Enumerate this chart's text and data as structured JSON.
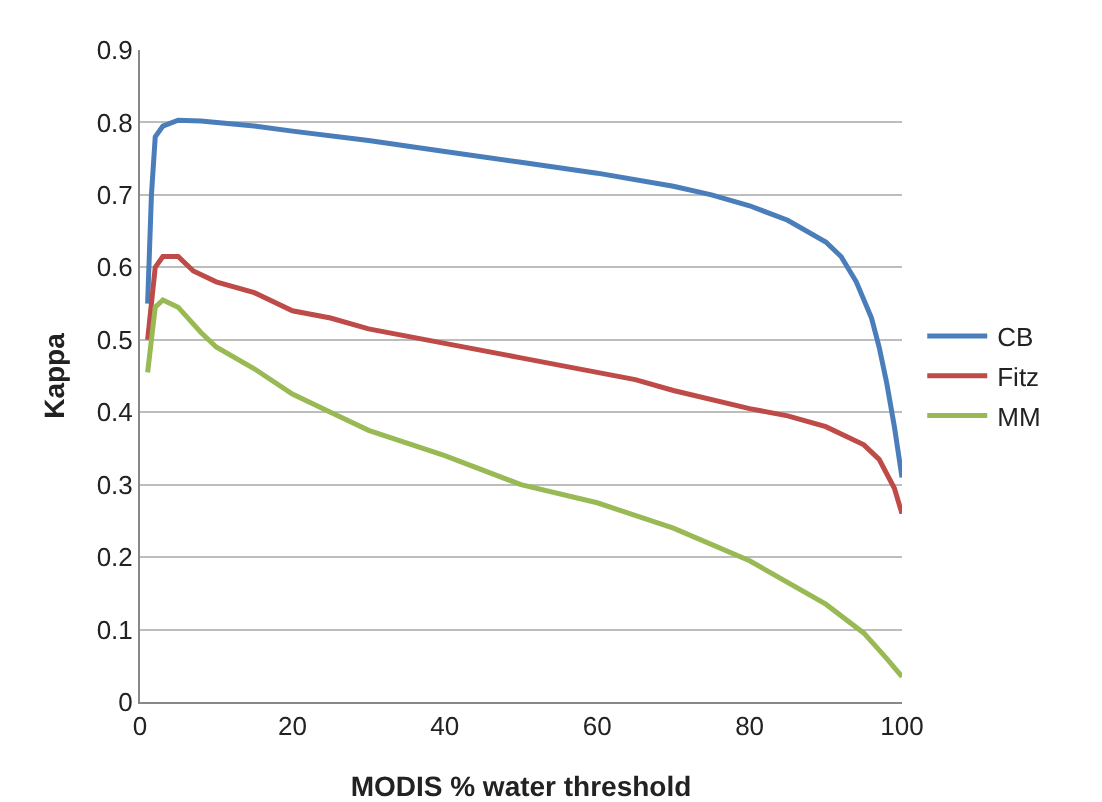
{
  "chart_data": {
    "type": "line",
    "xlabel": "MODIS % water threshold",
    "ylabel": "Kappa",
    "xlim": [
      0,
      100
    ],
    "xticks": [
      0,
      20,
      40,
      60,
      80,
      100
    ],
    "ylim": [
      0,
      0.9
    ],
    "yticks": [
      0,
      0.1,
      0.2,
      0.3,
      0.4,
      0.5,
      0.6,
      0.7,
      0.8,
      0.9
    ],
    "grid": "y",
    "legend": "right",
    "marker": "none",
    "line_style": "solid",
    "series": [
      {
        "name": "CB",
        "color": "#4a7ebb",
        "x": [
          1,
          1.5,
          2,
          3,
          5,
          8,
          15,
          20,
          30,
          40,
          50,
          60,
          70,
          75,
          80,
          85,
          90,
          92,
          94,
          96,
          97,
          98,
          99,
          100
        ],
        "values": [
          0.55,
          0.7,
          0.78,
          0.795,
          0.803,
          0.802,
          0.795,
          0.788,
          0.775,
          0.76,
          0.745,
          0.73,
          0.712,
          0.7,
          0.685,
          0.665,
          0.635,
          0.615,
          0.58,
          0.53,
          0.49,
          0.44,
          0.38,
          0.31
        ]
      },
      {
        "name": "Fitz",
        "color": "#be4b48",
        "x": [
          1,
          2,
          3,
          5,
          7,
          10,
          15,
          20,
          25,
          30,
          40,
          50,
          60,
          65,
          70,
          80,
          85,
          90,
          95,
          97,
          99,
          100
        ],
        "values": [
          0.5,
          0.6,
          0.615,
          0.615,
          0.595,
          0.58,
          0.565,
          0.54,
          0.53,
          0.515,
          0.495,
          0.475,
          0.455,
          0.445,
          0.43,
          0.405,
          0.395,
          0.38,
          0.355,
          0.335,
          0.295,
          0.26
        ]
      },
      {
        "name": "MM",
        "color": "#98b954",
        "x": [
          1,
          2,
          3,
          5,
          8,
          10,
          15,
          20,
          25,
          30,
          40,
          50,
          60,
          70,
          80,
          90,
          95,
          98,
          100
        ],
        "values": [
          0.455,
          0.545,
          0.555,
          0.545,
          0.51,
          0.49,
          0.46,
          0.425,
          0.4,
          0.375,
          0.34,
          0.3,
          0.275,
          0.24,
          0.195,
          0.135,
          0.095,
          0.06,
          0.035
        ]
      }
    ]
  }
}
